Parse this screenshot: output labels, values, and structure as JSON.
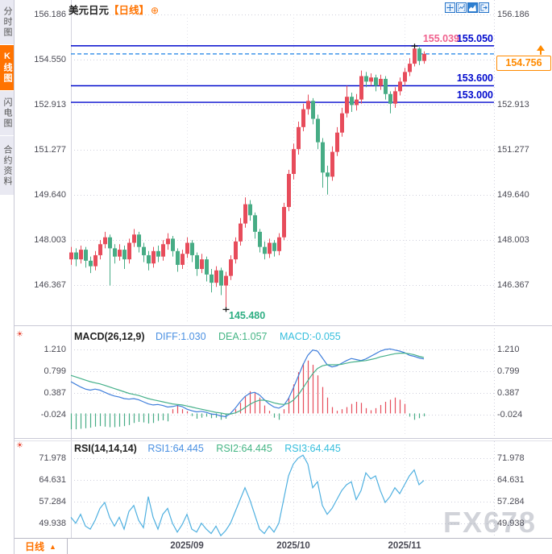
{
  "header": {
    "title": "美元日元",
    "period_tag": "【日线】",
    "add_icon": "⊕"
  },
  "sidebar": {
    "tabs": [
      {
        "label": "分时图",
        "active": false
      },
      {
        "label": "K线图",
        "active": true
      },
      {
        "label": "闪电图",
        "active": false
      },
      {
        "label": "合约资料",
        "active": false
      }
    ]
  },
  "toolbar": {
    "icons": [
      "move-tool",
      "range-chart-tool",
      "area-chart-tool",
      "exit-tool"
    ]
  },
  "levels": {
    "high_label": "155.039",
    "resistance": "155.050",
    "support1": "153.600",
    "support2": "153.000",
    "low_label": "145.480",
    "current_price": "154.756"
  },
  "macd_header": {
    "name": "MACD(26,12,9)",
    "diff": "DIFF:1.030",
    "dea": "DEA:1.057",
    "macd": "MACD:-0.055"
  },
  "rsi_header": {
    "name": "RSI(14,14,14)",
    "rsi1": "RSI1:64.445",
    "rsi2": "RSI2:64.445",
    "rsi3": "RSI3:64.445"
  },
  "bottom_bar": {
    "period": "日线",
    "arrow": "▲"
  },
  "watermark": "FX678",
  "colors": {
    "up": "#e74c5b",
    "down": "#47ac85",
    "level_line": "#0009cd",
    "current_line": "#2d8ce8",
    "accent_orange": "#ff7300",
    "diff_line": "#3f7edb",
    "dea_line": "#45b08a",
    "rsi_line": "#4fb0e0",
    "grid": "#cfcfdc",
    "grid_light": "#e2e2ea",
    "border": "#c9c9d6",
    "high_label": "#f0608d",
    "low_label": "#2fae83"
  },
  "chart_data": {
    "type": "candlestick+macd+rsi",
    "title": "美元日元 日线 (USD/JPY Daily)",
    "legend_position": "top-left headers per panel",
    "grid": "dotted",
    "main": {
      "y_ticks": [
        "156.186",
        "154.550",
        "152.913",
        "151.277",
        "149.640",
        "148.003",
        "146.367"
      ],
      "ylim": [
        146.367,
        156.186
      ],
      "levels": {
        "resistance": 155.05,
        "support1": 153.6,
        "support2": 153.0,
        "current": 154.756
      },
      "high_marker": {
        "index": 71,
        "price": 155.039
      },
      "low_marker": {
        "index": 32,
        "price": 145.48
      },
      "candles": [
        [
          147.3,
          147.75,
          147.1,
          147.55
        ],
        [
          147.55,
          147.7,
          147.05,
          147.3
        ],
        [
          147.3,
          147.8,
          147.15,
          147.65
        ],
        [
          147.65,
          147.75,
          147.0,
          147.25
        ],
        [
          147.25,
          147.4,
          146.8,
          147.05
        ],
        [
          147.05,
          147.6,
          146.9,
          147.45
        ],
        [
          147.45,
          148.0,
          147.3,
          147.85
        ],
        [
          147.85,
          148.3,
          147.7,
          148.1
        ],
        [
          148.1,
          148.2,
          146.35,
          147.7
        ],
        [
          147.7,
          147.85,
          147.15,
          147.4
        ],
        [
          147.4,
          147.85,
          147.25,
          147.65
        ],
        [
          147.65,
          147.8,
          146.95,
          147.3
        ],
        [
          147.3,
          148.05,
          147.15,
          147.9
        ],
        [
          147.9,
          148.4,
          147.75,
          148.2
        ],
        [
          148.2,
          148.3,
          147.55,
          147.75
        ],
        [
          147.75,
          147.9,
          147.2,
          147.45
        ],
        [
          147.45,
          147.6,
          146.9,
          147.15
        ],
        [
          147.15,
          147.75,
          147.0,
          147.6
        ],
        [
          147.6,
          147.8,
          147.2,
          147.4
        ],
        [
          147.4,
          148.0,
          147.25,
          147.85
        ],
        [
          147.85,
          148.25,
          147.65,
          148.05
        ],
        [
          148.05,
          148.15,
          147.4,
          147.6
        ],
        [
          147.6,
          147.7,
          146.85,
          147.1
        ],
        [
          147.1,
          147.65,
          146.95,
          147.5
        ],
        [
          147.5,
          148.1,
          147.35,
          147.9
        ],
        [
          147.9,
          148.0,
          147.2,
          147.45
        ],
        [
          147.45,
          147.55,
          146.7,
          146.95
        ],
        [
          146.95,
          147.5,
          146.8,
          147.3
        ],
        [
          147.3,
          147.4,
          146.5,
          146.75
        ],
        [
          146.75,
          146.95,
          146.1,
          146.45
        ],
        [
          146.45,
          147.05,
          146.3,
          146.9
        ],
        [
          146.9,
          147.0,
          146.0,
          146.35
        ],
        [
          146.35,
          146.85,
          145.48,
          146.7
        ],
        [
          146.7,
          147.45,
          146.55,
          147.3
        ],
        [
          147.3,
          148.1,
          147.15,
          147.95
        ],
        [
          147.95,
          148.8,
          147.8,
          148.6
        ],
        [
          148.6,
          149.55,
          148.45,
          149.3
        ],
        [
          149.3,
          149.45,
          148.7,
          148.9
        ],
        [
          148.9,
          149.0,
          148.05,
          148.3
        ],
        [
          148.3,
          148.4,
          147.55,
          147.75
        ],
        [
          147.75,
          147.95,
          147.3,
          147.5
        ],
        [
          147.5,
          148.05,
          147.35,
          147.9
        ],
        [
          147.9,
          148.0,
          147.4,
          147.6
        ],
        [
          147.6,
          148.25,
          147.45,
          148.1
        ],
        [
          148.1,
          149.35,
          148.0,
          149.2
        ],
        [
          149.2,
          150.55,
          149.05,
          150.4
        ],
        [
          150.4,
          151.5,
          150.2,
          151.3
        ],
        [
          151.3,
          152.3,
          151.1,
          152.1
        ],
        [
          152.1,
          152.95,
          151.95,
          152.75
        ],
        [
          152.75,
          153.28,
          152.55,
          153.05
        ],
        [
          153.05,
          153.15,
          152.2,
          152.4
        ],
        [
          152.4,
          152.55,
          151.3,
          151.55
        ],
        [
          151.55,
          151.7,
          149.9,
          150.45
        ],
        [
          150.45,
          150.7,
          149.65,
          150.3
        ],
        [
          150.3,
          151.4,
          150.15,
          151.2
        ],
        [
          151.2,
          152.1,
          151.05,
          151.9
        ],
        [
          151.9,
          152.8,
          151.75,
          152.6
        ],
        [
          152.6,
          153.6,
          152.45,
          153.2
        ],
        [
          153.2,
          153.35,
          152.65,
          152.9
        ],
        [
          152.9,
          153.3,
          152.7,
          153.1
        ],
        [
          153.1,
          154.15,
          152.95,
          153.95
        ],
        [
          153.95,
          154.1,
          153.55,
          153.75
        ],
        [
          153.75,
          154.05,
          153.6,
          153.9
        ],
        [
          153.9,
          154.0,
          153.4,
          153.6
        ],
        [
          153.6,
          154.0,
          153.45,
          153.85
        ],
        [
          153.85,
          153.95,
          153.1,
          153.3
        ],
        [
          153.3,
          153.4,
          152.6,
          152.95
        ],
        [
          152.95,
          153.55,
          152.8,
          153.4
        ],
        [
          153.4,
          153.9,
          153.25,
          153.75
        ],
        [
          153.75,
          154.25,
          153.6,
          154.1
        ],
        [
          154.1,
          154.6,
          153.95,
          154.4
        ],
        [
          154.4,
          155.039,
          154.3,
          154.95
        ],
        [
          154.95,
          155.0,
          154.35,
          154.5
        ],
        [
          154.5,
          154.85,
          154.4,
          154.756
        ]
      ]
    },
    "macd": {
      "y_ticks": [
        "1.210",
        "0.799",
        "0.387",
        "-0.024"
      ],
      "ylim": [
        -0.024,
        1.21
      ],
      "diff": [
        0.6,
        0.55,
        0.5,
        0.46,
        0.44,
        0.46,
        0.44,
        0.4,
        0.36,
        0.33,
        0.31,
        0.28,
        0.27,
        0.28,
        0.26,
        0.22,
        0.18,
        0.16,
        0.17,
        0.15,
        0.12,
        0.13,
        0.15,
        0.13,
        0.08,
        0.05,
        0.03,
        0.04,
        0.02,
        -0.01,
        -0.02,
        -0.05,
        -0.06,
        0.0,
        0.1,
        0.22,
        0.32,
        0.38,
        0.4,
        0.35,
        0.26,
        0.18,
        0.12,
        0.1,
        0.15,
        0.28,
        0.48,
        0.7,
        0.92,
        1.1,
        1.2,
        1.18,
        1.05,
        0.92,
        0.88,
        0.9,
        0.95,
        1.0,
        1.04,
        1.02,
        1.0,
        1.03,
        1.08,
        1.13,
        1.18,
        1.21,
        1.22,
        1.2,
        1.18,
        1.15,
        1.1,
        1.08,
        1.05,
        1.03
      ],
      "dea": [
        0.72,
        0.69,
        0.66,
        0.63,
        0.6,
        0.58,
        0.56,
        0.53,
        0.5,
        0.47,
        0.44,
        0.41,
        0.38,
        0.36,
        0.34,
        0.31,
        0.28,
        0.26,
        0.24,
        0.22,
        0.2,
        0.18,
        0.17,
        0.16,
        0.14,
        0.12,
        0.1,
        0.08,
        0.06,
        0.04,
        0.02,
        0.01,
        -0.01,
        -0.01,
        0.01,
        0.05,
        0.11,
        0.17,
        0.22,
        0.25,
        0.25,
        0.23,
        0.2,
        0.18,
        0.17,
        0.19,
        0.25,
        0.35,
        0.48,
        0.62,
        0.75,
        0.85,
        0.9,
        0.92,
        0.92,
        0.92,
        0.93,
        0.95,
        0.97,
        0.98,
        0.99,
        1.0,
        1.02,
        1.04,
        1.07,
        1.09,
        1.11,
        1.13,
        1.14,
        1.14,
        1.13,
        1.11,
        1.08,
        1.057
      ],
      "hist": [
        -0.3,
        -0.3,
        -0.29,
        -0.28,
        -0.27,
        -0.25,
        -0.24,
        -0.25,
        -0.26,
        -0.26,
        -0.25,
        -0.24,
        -0.22,
        -0.18,
        -0.16,
        -0.17,
        -0.19,
        -0.18,
        -0.14,
        -0.13,
        -0.15,
        0.08,
        0.16,
        0.08,
        0.04,
        -0.05,
        -0.1,
        -0.08,
        -0.06,
        -0.09,
        -0.08,
        -0.12,
        -0.1,
        -0.02,
        0.08,
        0.2,
        0.33,
        0.42,
        0.4,
        0.3,
        0.15,
        0.05,
        -0.08,
        -0.12,
        0.08,
        0.3,
        0.55,
        0.78,
        0.95,
        1.0,
        0.92,
        0.72,
        0.5,
        0.3,
        0.12,
        0.05,
        0.08,
        0.12,
        0.18,
        0.22,
        0.2,
        0.1,
        0.06,
        0.1,
        0.16,
        0.22,
        0.26,
        0.3,
        0.26,
        0.18,
        -0.06,
        -0.12,
        -0.09,
        -0.055
      ]
    },
    "rsi": {
      "y_ticks": [
        "71.978",
        "64.631",
        "57.284",
        "49.938"
      ],
      "ylim": [
        49.938,
        71.978
      ],
      "values": [
        52,
        50,
        53,
        49,
        48,
        51,
        55,
        57,
        52,
        49,
        52,
        48,
        54,
        56,
        51,
        48.5,
        59,
        52,
        48,
        53,
        55,
        50,
        47,
        49.5,
        53,
        48,
        47,
        50,
        48,
        46.5,
        49,
        45.8,
        47.5,
        50,
        54,
        58,
        62,
        58,
        53,
        48,
        46.5,
        49,
        47,
        50,
        58,
        66,
        70,
        72,
        73,
        70,
        62,
        64,
        56,
        53,
        55,
        58,
        61,
        63,
        64,
        58,
        61,
        67,
        65,
        66,
        61,
        57,
        59,
        62,
        60,
        63,
        66,
        68,
        63,
        64.445
      ]
    },
    "x_ticks": [
      {
        "label": "2025/09",
        "index": 24
      },
      {
        "label": "2025/10",
        "index": 46
      },
      {
        "label": "2025/11",
        "index": 69
      }
    ]
  }
}
